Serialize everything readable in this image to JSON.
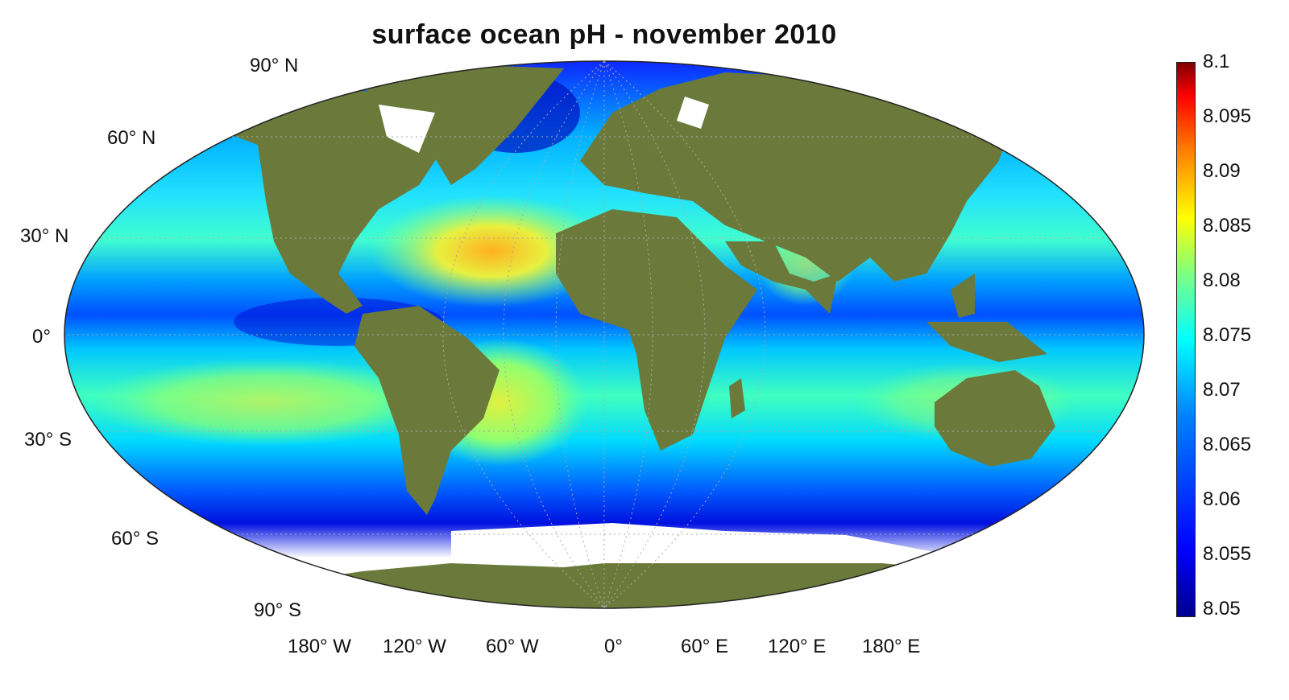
{
  "title": "surface ocean pH - november 2010",
  "lat_labels": [
    "90° N",
    "60° N",
    "30° N",
    "0°",
    "30° S",
    "60° S",
    "90° S"
  ],
  "lon_labels": [
    "180° W",
    "120° W",
    "60° W",
    "0°",
    "60° E",
    "120° E",
    "180° E"
  ],
  "colorbar": {
    "ticks": [
      "8.1",
      "8.095",
      "8.09",
      "8.085",
      "8.08",
      "8.075",
      "8.07",
      "8.065",
      "8.06",
      "8.055",
      "8.05"
    ],
    "min": 8.05,
    "max": 8.1,
    "colormap": "jet"
  },
  "colors": {
    "land": "#6b7a3a",
    "ocean_low": "#0000ff",
    "ocean_mid": "#00ffff",
    "ocean_high": "#ffff00"
  },
  "projection": "Robinson"
}
